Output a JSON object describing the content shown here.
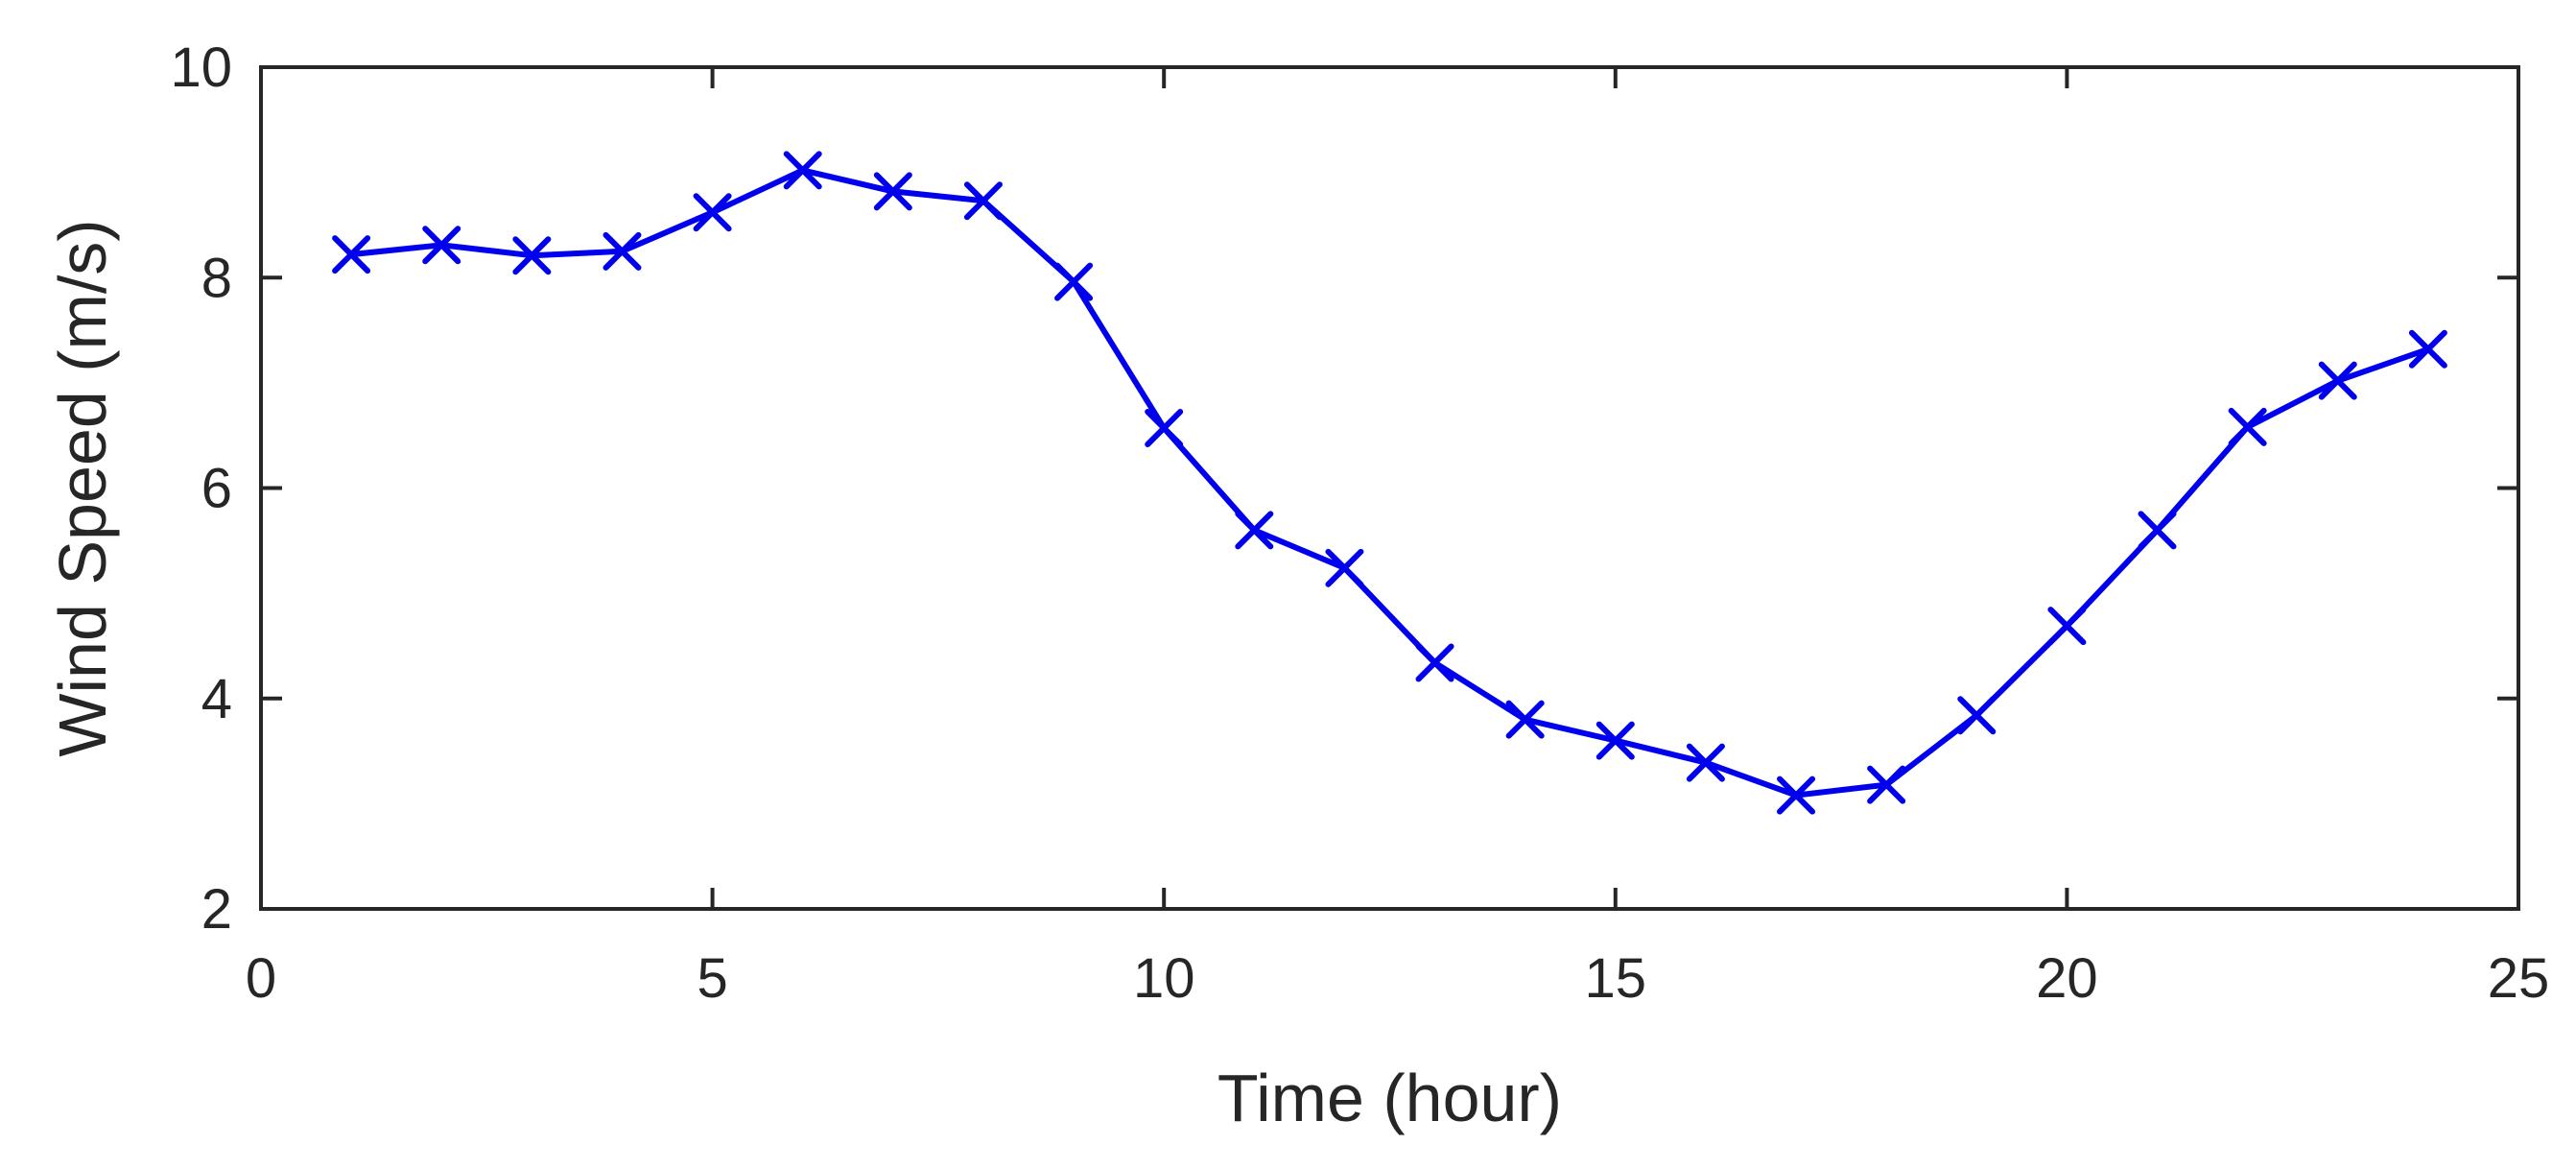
{
  "chart_data": {
    "type": "line",
    "title": "",
    "xlabel": "Time (hour)",
    "ylabel": "Wind Speed (m/s)",
    "xlim": [
      0,
      25
    ],
    "ylim": [
      2,
      10
    ],
    "xticks": [
      0,
      5,
      10,
      15,
      20,
      25
    ],
    "yticks": [
      2,
      4,
      6,
      8,
      10
    ],
    "grid": false,
    "legend": "none",
    "series": [
      {
        "color": "#0000ee",
        "marker": "x",
        "x": [
          1,
          2,
          3,
          4,
          5,
          6,
          7,
          8,
          9,
          10,
          11,
          12,
          13,
          14,
          15,
          16,
          17,
          18,
          19,
          20,
          21,
          22,
          23,
          24
        ],
        "values": [
          8.22,
          8.31,
          8.21,
          8.25,
          8.62,
          9.02,
          8.82,
          8.73,
          7.96,
          6.57,
          5.6,
          5.24,
          4.34,
          3.8,
          3.6,
          3.39,
          3.08,
          3.18,
          3.84,
          4.69,
          5.6,
          6.58,
          7.02,
          7.32
        ]
      }
    ]
  }
}
